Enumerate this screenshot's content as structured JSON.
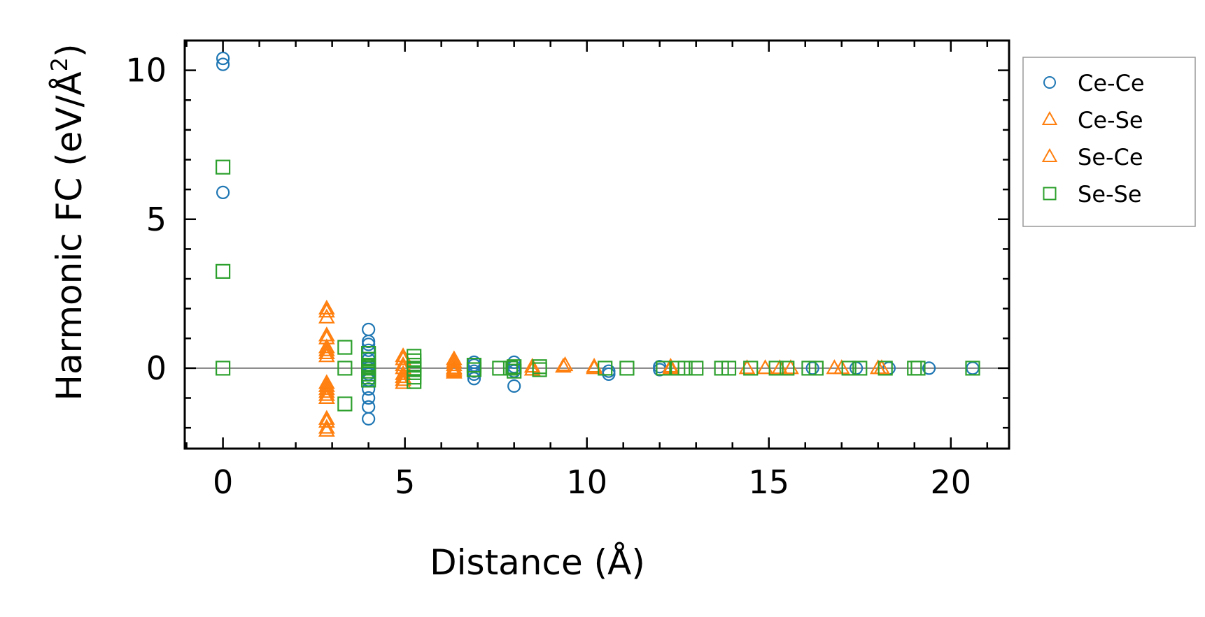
{
  "chart_data": {
    "type": "scatter",
    "xlabel": "Distance (Å)",
    "ylabel_main": "Harmonic FC (eV/Å",
    "ylabel_sup": "2",
    "ylabel_close": ")",
    "xlim": [
      -1.05,
      21.6
    ],
    "ylim": [
      -2.7,
      11.0
    ],
    "xticks": [
      0,
      5,
      10,
      15,
      20
    ],
    "yticks": [
      0,
      5,
      10
    ],
    "xminor_step": 1,
    "yminor_step": 1,
    "zero_line": true,
    "grid": false,
    "legend_position": "outside-right",
    "series": [
      {
        "name": "Ce-Ce",
        "marker": "circle",
        "color": "#1f77b4",
        "x": [
          0,
          0,
          0,
          4,
          4,
          4,
          4,
          4,
          4,
          4,
          4,
          4,
          4,
          4,
          4,
          4,
          6.9,
          6.9,
          6.9,
          6.9,
          6.9,
          8,
          8,
          8,
          8,
          10.6,
          10.6,
          12,
          12,
          16.2,
          17.4,
          18.3,
          19.4,
          20.6
        ],
        "y": [
          10.4,
          10.2,
          5.9,
          1.3,
          0.9,
          0.8,
          0.6,
          0.3,
          0.1,
          0,
          -0.2,
          -0.4,
          -0.7,
          -1.0,
          -1.3,
          -1.7,
          0.2,
          0.1,
          -0.1,
          -0.2,
          -0.35,
          0.2,
          0.05,
          -0.1,
          -0.6,
          -0.1,
          -0.2,
          -0.05,
          0.05,
          0,
          0,
          0,
          0,
          0
        ]
      },
      {
        "name": "Ce-Se",
        "marker": "triangle",
        "color": "#ff7f0e",
        "x": [
          2.85,
          2.85,
          2.85,
          2.85,
          2.85,
          2.85,
          2.85,
          2.85,
          2.85,
          2.85,
          4.95,
          4.95,
          4.95,
          4.95,
          6.35,
          6.35,
          6.35,
          6.35,
          8.5,
          9.4,
          10.2,
          12.3,
          14.9,
          15.6,
          16.8,
          18.0
        ],
        "y": [
          2.0,
          1.7,
          1.0,
          0.6,
          0.4,
          -0.6,
          -0.8,
          -1.0,
          -1.7,
          -2.0,
          0.3,
          0.1,
          -0.2,
          -0.5,
          0.3,
          0.1,
          -0.05,
          -0.15,
          0.05,
          0.1,
          0.05,
          0.05,
          0,
          0,
          0,
          0
        ]
      },
      {
        "name": "Se-Ce",
        "marker": "triangle",
        "color": "#ff7f0e",
        "x": [
          2.85,
          2.85,
          2.85,
          2.85,
          2.85,
          2.85,
          2.85,
          2.85,
          2.85,
          4.95,
          4.95,
          4.95,
          4.95,
          6.35,
          6.35,
          6.35,
          8.5,
          9.35,
          10.2,
          12.3,
          14.4,
          15.3,
          17.0,
          18.1
        ],
        "y": [
          1.9,
          1.1,
          0.7,
          0.5,
          -0.5,
          -0.7,
          -0.9,
          -1.8,
          -2.1,
          0.4,
          0.0,
          -0.3,
          -0.4,
          0.2,
          0.0,
          -0.1,
          -0.05,
          0.05,
          0.0,
          0.0,
          0.0,
          0.0,
          0.0,
          0.0
        ]
      },
      {
        "name": "Se-Se",
        "marker": "square",
        "color": "#2ca02c",
        "x": [
          0,
          0,
          0,
          3.35,
          3.35,
          3.35,
          4.0,
          4.0,
          4.0,
          4.0,
          4.0,
          4.0,
          4.0,
          4.0,
          5.25,
          5.25,
          5.25,
          5.25,
          5.25,
          5.25,
          5.25,
          5.25,
          6.9,
          6.9,
          7.6,
          7.9,
          8.0,
          8.0,
          8.7,
          8.7,
          10.5,
          11.1,
          12.1,
          12.5,
          12.7,
          13.0,
          13.7,
          13.9,
          14.5,
          15.2,
          15.5,
          16.1,
          16.3,
          17.2,
          17.5,
          18.2,
          19.0,
          19.1,
          20.6
        ],
        "y": [
          6.75,
          3.25,
          0.0,
          0.7,
          0.0,
          -1.2,
          0.5,
          0.3,
          0.1,
          0.0,
          -0.1,
          -0.2,
          -0.3,
          -0.4,
          0.4,
          0.25,
          0.1,
          0.0,
          -0.05,
          -0.15,
          -0.3,
          -0.45,
          0.1,
          -0.05,
          0.0,
          0.0,
          0.05,
          -0.1,
          0.05,
          -0.05,
          0.0,
          0.0,
          0.0,
          0.0,
          0.0,
          0.0,
          0.0,
          0.0,
          0.0,
          0.0,
          0.0,
          0.0,
          0.0,
          0.0,
          0.0,
          0.0,
          0.0,
          0.0,
          0.0
        ]
      }
    ]
  }
}
